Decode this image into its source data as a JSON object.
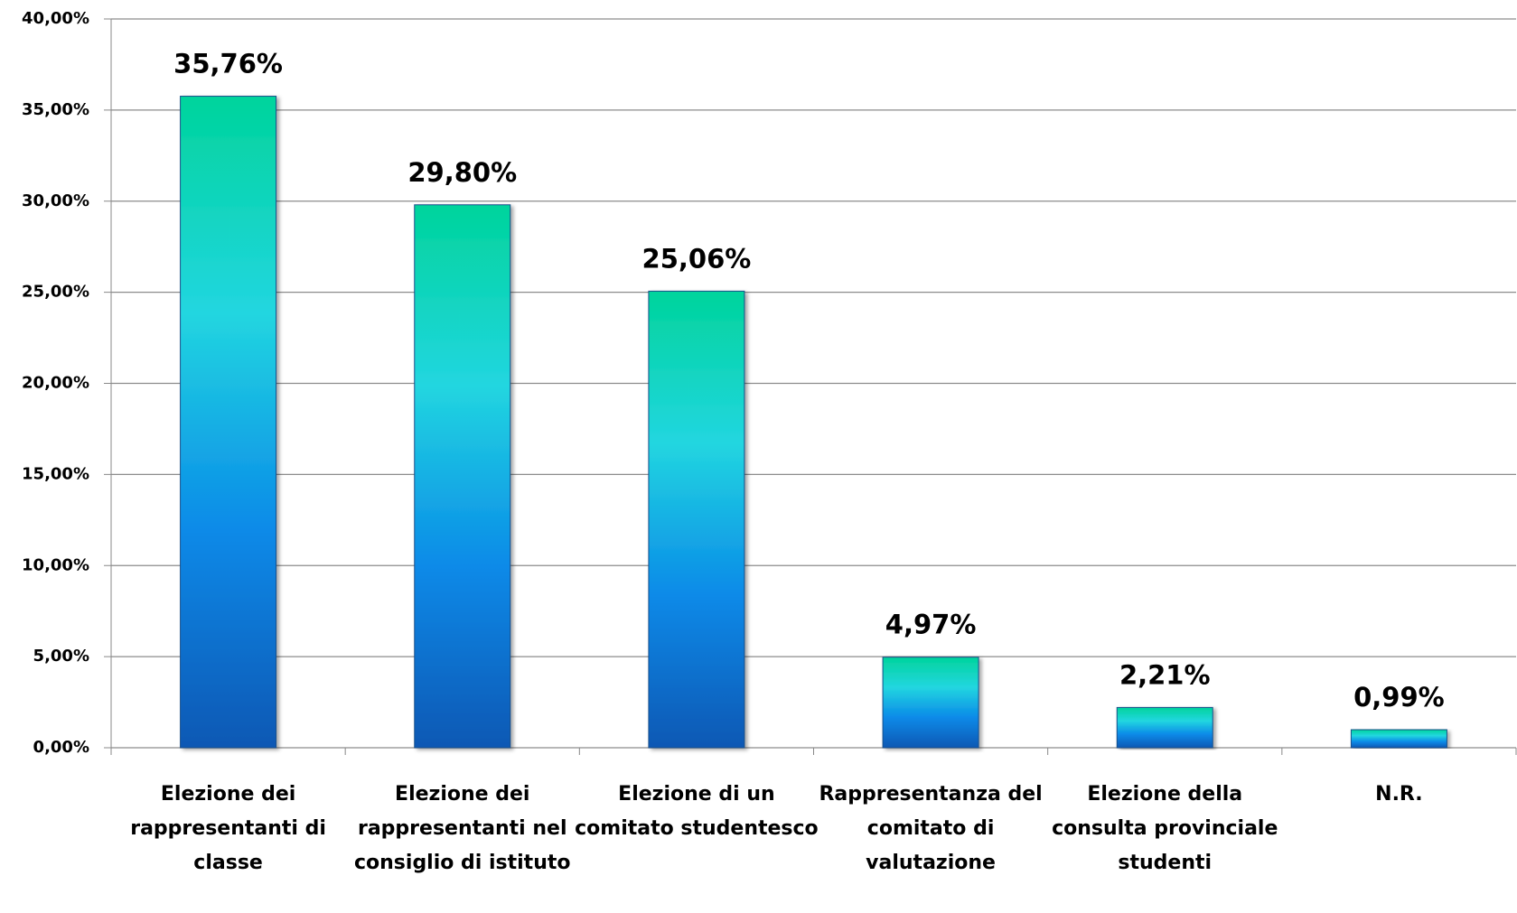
{
  "chart_data": {
    "type": "bar",
    "categories": [
      "Elezione dei rappresentanti di classe",
      "Elezione dei rappresentanti nel consiglio di istituto",
      "Elezione di un comitato studentesco",
      "Rappresentanza del comitato di valutazione",
      "Elezione della consulta provinciale studenti",
      "N.R."
    ],
    "values": [
      35.76,
      29.8,
      25.06,
      4.97,
      2.21,
      0.99
    ],
    "value_labels": [
      "35,76%",
      "29,80%",
      "25,06%",
      "4,97%",
      "2,21%",
      "0,99%"
    ],
    "gradient": [
      "#00d49c",
      "#22d6e0",
      "#0a8ae8",
      "#0858b4"
    ],
    "ylim": [
      0,
      40
    ],
    "yticks": [
      {
        "value": 0,
        "label": "0,00%"
      },
      {
        "value": 5,
        "label": "5,00%"
      },
      {
        "value": 10,
        "label": "10,00%"
      },
      {
        "value": 15,
        "label": "15,00%"
      },
      {
        "value": 20,
        "label": "20,00%"
      },
      {
        "value": 25,
        "label": "25,00%"
      },
      {
        "value": 30,
        "label": "30,00%"
      },
      {
        "value": 35,
        "label": "35,00%"
      },
      {
        "value": 40,
        "label": "40,00%"
      }
    ],
    "grid": true
  }
}
